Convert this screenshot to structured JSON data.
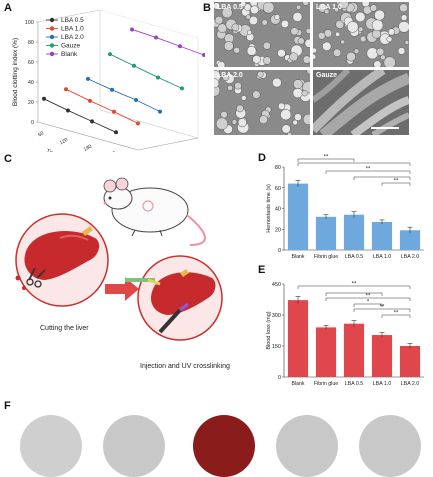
{
  "panels": {
    "a": {
      "letter": "A"
    },
    "b": {
      "letter": "B"
    },
    "c": {
      "letter": "C"
    },
    "d": {
      "letter": "D"
    },
    "e": {
      "letter": "E"
    },
    "f": {
      "letter": "F"
    }
  },
  "sem_images": [
    {
      "label": "LBA 0.5"
    },
    {
      "label": "LBA 1.0"
    },
    {
      "label": "LBA 2.0"
    },
    {
      "label": "Gauze"
    }
  ],
  "schematic": {
    "step1_label": "Cutting the liver",
    "step2_label": "Injection and UV crosslinking"
  },
  "significance_marker": "**",
  "significance_marker_single": "*",
  "chart_data": [
    {
      "id": "A",
      "type": "line",
      "ylabel": "Blood clotting index (%)",
      "xlabel": "Time (s)",
      "ylim": [
        0,
        100
      ],
      "yticks": [
        0,
        20,
        40,
        60,
        80,
        100
      ],
      "x": [
        60,
        120,
        180,
        300
      ],
      "series": [
        {
          "name": "LBA 0.5",
          "color": "#333333",
          "values": [
            35,
            28,
            22,
            16
          ]
        },
        {
          "name": "LBA 1.0",
          "color": "#e0482f",
          "values": [
            40,
            33,
            27,
            20
          ]
        },
        {
          "name": "LBA 2.0",
          "color": "#2a6fb5",
          "values": [
            46,
            40,
            35,
            28
          ]
        },
        {
          "name": "Gauze",
          "color": "#1e9e6e",
          "values": [
            72,
            65,
            58,
            52
          ]
        },
        {
          "name": "Blank",
          "color": "#9b3fc6",
          "values": [
            98,
            96,
            93,
            90
          ]
        }
      ]
    },
    {
      "id": "D",
      "type": "bar",
      "ylabel": "Hemostasis time (s)",
      "ylim": [
        0,
        80
      ],
      "yticks": [
        0,
        20,
        40,
        60,
        80
      ],
      "categories": [
        "Blank",
        "Fibrin glue",
        "LBA 0.5",
        "LBA 1.0",
        "LBA 2.0"
      ],
      "values": [
        64,
        32,
        34,
        27,
        19
      ],
      "errors": [
        3,
        2,
        3,
        2,
        3
      ],
      "color": "#6fa8dc"
    },
    {
      "id": "E",
      "type": "bar",
      "ylabel": "Blood loss (mg)",
      "ylim": [
        0,
        450
      ],
      "yticks": [
        0,
        150,
        300,
        450
      ],
      "categories": [
        "Blank",
        "Fibrin glue",
        "LBA 0.5",
        "LBA 1.0",
        "LBA 2.0"
      ],
      "values": [
        372,
        240,
        258,
        203,
        150
      ],
      "errors": [
        18,
        10,
        15,
        12,
        12
      ],
      "color": "#e0474c"
    }
  ]
}
